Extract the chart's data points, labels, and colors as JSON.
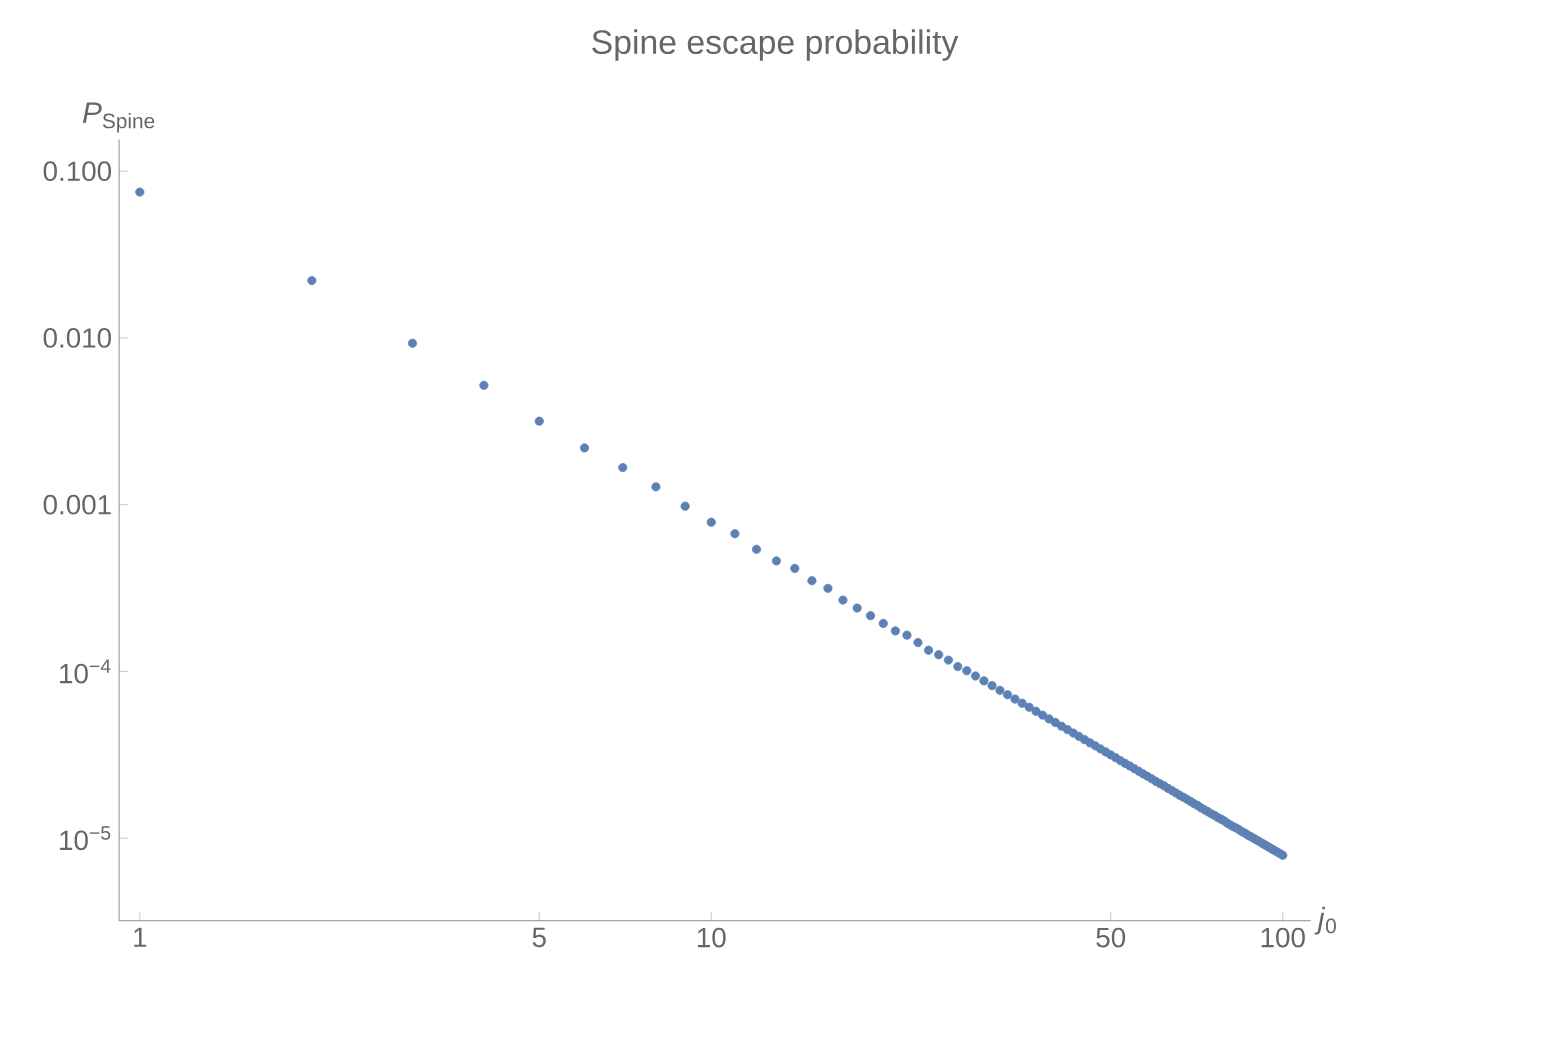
{
  "chart_data": {
    "type": "scatter",
    "title": "Spine escape probability",
    "xlabel": "*j*$_{0}$",
    "ylabel": "*P*$_{Spine}$",
    "log": "xy",
    "marker": "circle",
    "xlim": [
      0.92,
      112
    ],
    "ylim": [
      3.2e-06,
      0.155
    ],
    "xticks": [
      1,
      5,
      10,
      50,
      100
    ],
    "yticks": [
      {
        "value": 0.1,
        "label": "0.100"
      },
      {
        "value": 0.01,
        "label": "0.010"
      },
      {
        "value": 0.001,
        "label": "0.001"
      },
      {
        "value": 0.0001,
        "label": "10$^{−4}$"
      },
      {
        "value": 1e-05,
        "label": "10$^{−5}$"
      }
    ],
    "series": [
      {
        "color": "#5e81b5",
        "x": [
          1,
          2,
          3,
          4,
          5,
          6,
          7,
          8,
          9,
          10,
          11,
          12,
          13,
          14,
          15,
          16,
          17,
          18,
          19,
          20,
          21,
          22,
          23,
          24,
          25,
          26,
          27,
          28,
          29,
          30,
          31,
          32,
          33,
          34,
          35,
          36,
          37,
          38,
          39,
          40,
          41,
          42,
          43,
          44,
          45,
          46,
          47,
          48,
          49,
          50,
          51,
          52,
          53,
          54,
          55,
          56,
          57,
          58,
          59,
          60,
          61,
          62,
          63,
          64,
          65,
          66,
          67,
          68,
          69,
          70,
          71,
          72,
          73,
          74,
          75,
          76,
          77,
          78,
          79,
          80,
          81,
          82,
          83,
          84,
          85,
          86,
          87,
          88,
          89,
          90,
          91,
          92,
          93,
          94,
          95,
          96,
          97,
          98,
          99,
          100
        ],
        "values": [
          0.075,
          0.0221,
          0.0093,
          0.0052,
          0.00317,
          0.00219,
          0.00167,
          0.00128,
          0.00098,
          0.000785,
          0.00067,
          0.00054,
          0.00046,
          0.000415,
          0.00035,
          0.000315,
          0.000268,
          0.00024,
          0.000216,
          0.000194,
          0.000175,
          0.000165,
          0.000149,
          0.000134,
          0.000126,
          0.000117,
          0.000107,
          0.000101,
          9.39e-05,
          8.78e-05,
          8.22e-05,
          7.71e-05,
          7.25e-05,
          6.83e-05,
          6.45e-05,
          6.1e-05,
          5.77e-05,
          5.47e-05,
          5.19e-05,
          4.94e-05,
          4.7e-05,
          4.48e-05,
          4.27e-05,
          4.08e-05,
          3.9e-05,
          3.73e-05,
          3.58e-05,
          3.43e-05,
          3.29e-05,
          3.16e-05,
          3.04e-05,
          2.92e-05,
          2.81e-05,
          2.71e-05,
          2.61e-05,
          2.52e-05,
          2.43e-05,
          2.35e-05,
          2.27e-05,
          2.19e-05,
          2.12e-05,
          2.06e-05,
          1.99e-05,
          1.93e-05,
          1.87e-05,
          1.81e-05,
          1.76e-05,
          1.71e-05,
          1.66e-05,
          1.61e-05,
          1.57e-05,
          1.52e-05,
          1.48e-05,
          1.44e-05,
          1.4e-05,
          1.37e-05,
          1.33e-05,
          1.3e-05,
          1.27e-05,
          1.23e-05,
          1.2e-05,
          1.17e-05,
          1.15e-05,
          1.12e-05,
          1.09e-05,
          1.07e-05,
          1.04e-05,
          1.02e-05,
          9.97e-06,
          9.75e-06,
          9.54e-06,
          9.33e-06,
          9.13e-06,
          8.94e-06,
          8.75e-06,
          8.57e-06,
          8.4e-06,
          8.23e-06,
          8.06e-06,
          7.9e-06
        ]
      }
    ]
  }
}
